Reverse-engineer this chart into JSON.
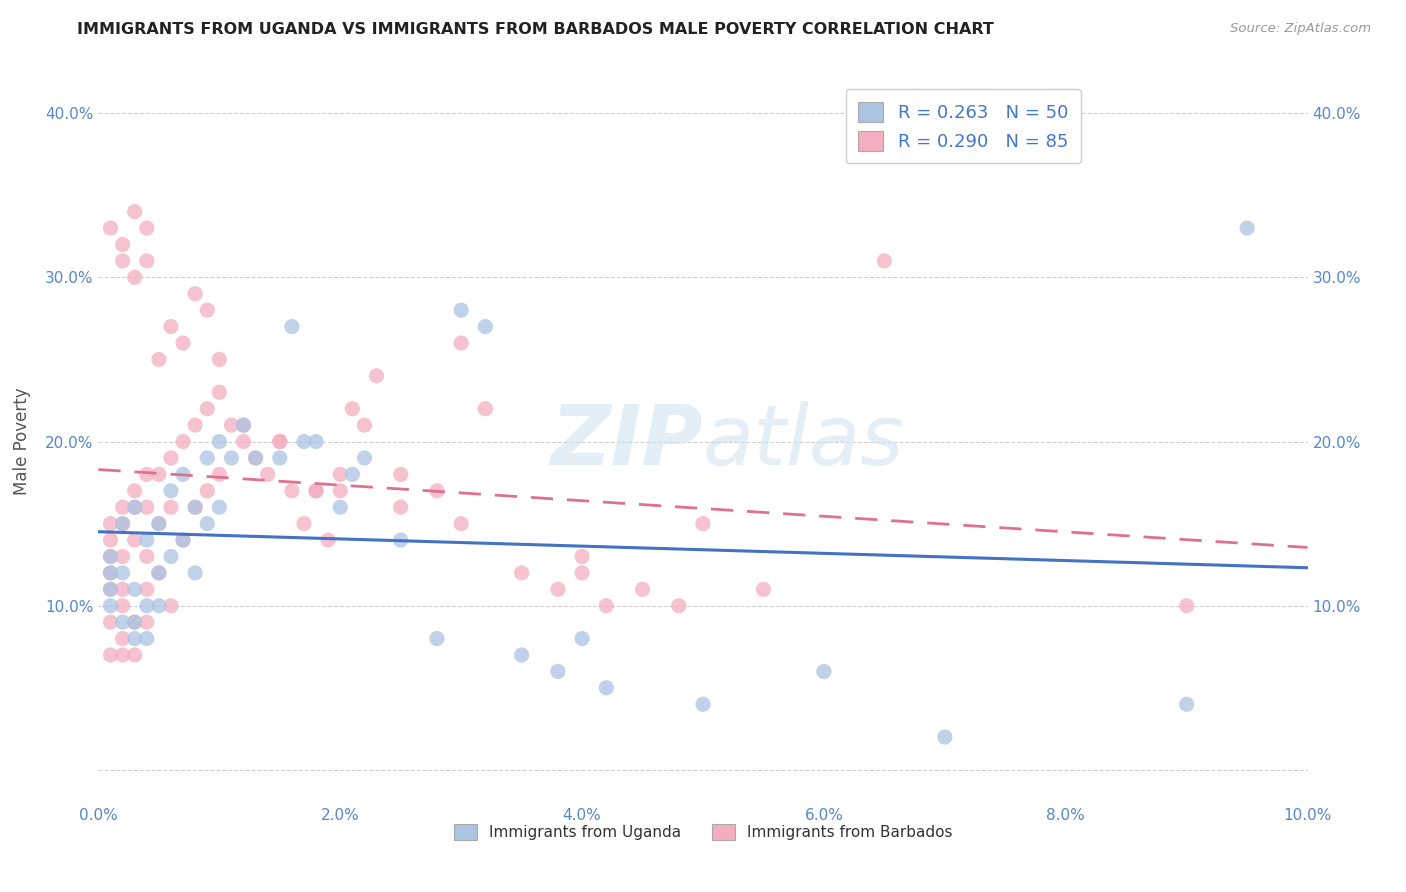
{
  "title": "IMMIGRANTS FROM UGANDA VS IMMIGRANTS FROM BARBADOS MALE POVERTY CORRELATION CHART",
  "source": "Source: ZipAtlas.com",
  "ylabel": "Male Poverty",
  "xlim": [
    0.0,
    0.1
  ],
  "ylim": [
    -0.02,
    0.42
  ],
  "x_ticks": [
    0.0,
    0.02,
    0.04,
    0.06,
    0.08,
    0.1
  ],
  "y_ticks": [
    0.0,
    0.1,
    0.2,
    0.3,
    0.4
  ],
  "legend_uganda": "Immigrants from Uganda",
  "legend_barbados": "Immigrants from Barbados",
  "r_uganda": "0.263",
  "n_uganda": "50",
  "r_barbados": "0.290",
  "n_barbados": "85",
  "color_uganda": "#aac4e2",
  "color_barbados": "#f4aec0",
  "line_color_uganda": "#4472c4",
  "line_color_barbados": "#e07090",
  "watermark_zip": "ZIP",
  "watermark_atlas": "atlas",
  "uganda_x": [
    0.001,
    0.001,
    0.001,
    0.001,
    0.002,
    0.002,
    0.002,
    0.003,
    0.003,
    0.003,
    0.003,
    0.004,
    0.004,
    0.004,
    0.005,
    0.005,
    0.005,
    0.006,
    0.006,
    0.007,
    0.007,
    0.008,
    0.008,
    0.009,
    0.009,
    0.01,
    0.01,
    0.011,
    0.012,
    0.013,
    0.015,
    0.016,
    0.017,
    0.018,
    0.02,
    0.021,
    0.022,
    0.025,
    0.028,
    0.03,
    0.032,
    0.035,
    0.038,
    0.04,
    0.042,
    0.05,
    0.06,
    0.07,
    0.09,
    0.095
  ],
  "uganda_y": [
    0.13,
    0.12,
    0.11,
    0.1,
    0.15,
    0.12,
    0.09,
    0.16,
    0.11,
    0.09,
    0.08,
    0.14,
    0.1,
    0.08,
    0.15,
    0.12,
    0.1,
    0.17,
    0.13,
    0.18,
    0.14,
    0.16,
    0.12,
    0.19,
    0.15,
    0.2,
    0.16,
    0.19,
    0.21,
    0.19,
    0.19,
    0.27,
    0.2,
    0.2,
    0.16,
    0.18,
    0.19,
    0.14,
    0.08,
    0.28,
    0.27,
    0.07,
    0.06,
    0.08,
    0.05,
    0.04,
    0.06,
    0.02,
    0.04,
    0.33
  ],
  "barbados_x": [
    0.001,
    0.001,
    0.001,
    0.001,
    0.001,
    0.001,
    0.002,
    0.002,
    0.002,
    0.002,
    0.002,
    0.002,
    0.003,
    0.003,
    0.003,
    0.003,
    0.004,
    0.004,
    0.004,
    0.004,
    0.004,
    0.005,
    0.005,
    0.005,
    0.006,
    0.006,
    0.006,
    0.007,
    0.007,
    0.008,
    0.008,
    0.009,
    0.009,
    0.01,
    0.01,
    0.011,
    0.012,
    0.013,
    0.014,
    0.015,
    0.016,
    0.017,
    0.018,
    0.019,
    0.02,
    0.021,
    0.022,
    0.023,
    0.025,
    0.028,
    0.03,
    0.032,
    0.035,
    0.038,
    0.04,
    0.042,
    0.045,
    0.048,
    0.05,
    0.055,
    0.001,
    0.002,
    0.002,
    0.003,
    0.003,
    0.004,
    0.004,
    0.005,
    0.006,
    0.007,
    0.008,
    0.009,
    0.01,
    0.012,
    0.015,
    0.018,
    0.02,
    0.025,
    0.03,
    0.04,
    0.001,
    0.002,
    0.003,
    0.065,
    0.09
  ],
  "barbados_y": [
    0.15,
    0.14,
    0.13,
    0.12,
    0.11,
    0.09,
    0.16,
    0.15,
    0.13,
    0.11,
    0.1,
    0.08,
    0.17,
    0.16,
    0.14,
    0.09,
    0.18,
    0.16,
    0.13,
    0.11,
    0.09,
    0.18,
    0.15,
    0.12,
    0.19,
    0.16,
    0.1,
    0.2,
    0.14,
    0.21,
    0.16,
    0.22,
    0.17,
    0.23,
    0.18,
    0.21,
    0.2,
    0.19,
    0.18,
    0.2,
    0.17,
    0.15,
    0.17,
    0.14,
    0.18,
    0.22,
    0.21,
    0.24,
    0.18,
    0.17,
    0.26,
    0.22,
    0.12,
    0.11,
    0.13,
    0.1,
    0.11,
    0.1,
    0.15,
    0.11,
    0.33,
    0.32,
    0.31,
    0.34,
    0.3,
    0.33,
    0.31,
    0.25,
    0.27,
    0.26,
    0.29,
    0.28,
    0.25,
    0.21,
    0.2,
    0.17,
    0.17,
    0.16,
    0.15,
    0.12,
    0.07,
    0.07,
    0.07,
    0.31,
    0.1
  ]
}
